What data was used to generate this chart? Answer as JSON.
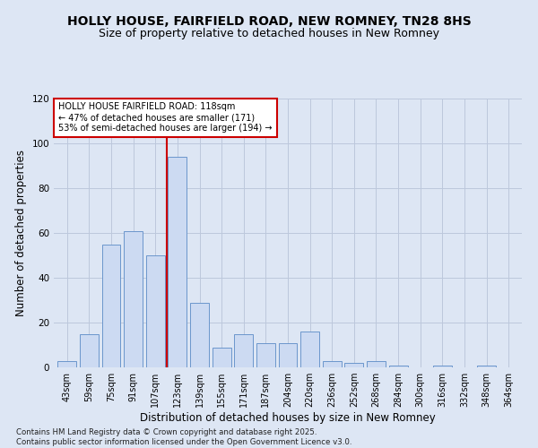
{
  "title_line1": "HOLLY HOUSE, FAIRFIELD ROAD, NEW ROMNEY, TN28 8HS",
  "title_line2": "Size of property relative to detached houses in New Romney",
  "xlabel": "Distribution of detached houses by size in New Romney",
  "ylabel": "Number of detached properties",
  "categories": [
    "43sqm",
    "59sqm",
    "75sqm",
    "91sqm",
    "107sqm",
    "123sqm",
    "139sqm",
    "155sqm",
    "171sqm",
    "187sqm",
    "204sqm",
    "220sqm",
    "236sqm",
    "252sqm",
    "268sqm",
    "284sqm",
    "300sqm",
    "316sqm",
    "332sqm",
    "348sqm",
    "364sqm"
  ],
  "values": [
    3,
    15,
    55,
    61,
    50,
    94,
    29,
    9,
    15,
    11,
    11,
    16,
    3,
    2,
    3,
    1,
    0,
    1,
    0,
    1,
    0
  ],
  "bar_color": "#ccdaf2",
  "bar_edge_color": "#6b96cc",
  "vline_x": 4.5,
  "vline_color": "#cc0000",
  "annotation_text": "HOLLY HOUSE FAIRFIELD ROAD: 118sqm\n← 47% of detached houses are smaller (171)\n53% of semi-detached houses are larger (194) →",
  "annotation_box_color": "#ffffff",
  "annotation_box_edge": "#cc0000",
  "ylim": [
    0,
    120
  ],
  "yticks": [
    0,
    20,
    40,
    60,
    80,
    100,
    120
  ],
  "grid_color": "#bcc8dc",
  "bg_color": "#dde6f4",
  "footnote": "Contains HM Land Registry data © Crown copyright and database right 2025.\nContains public sector information licensed under the Open Government Licence v3.0.",
  "title_fontsize": 10,
  "subtitle_fontsize": 9,
  "axis_label_fontsize": 8.5,
  "tick_fontsize": 7,
  "annotation_fontsize": 7,
  "ylabel_full": "Number of detached properties"
}
